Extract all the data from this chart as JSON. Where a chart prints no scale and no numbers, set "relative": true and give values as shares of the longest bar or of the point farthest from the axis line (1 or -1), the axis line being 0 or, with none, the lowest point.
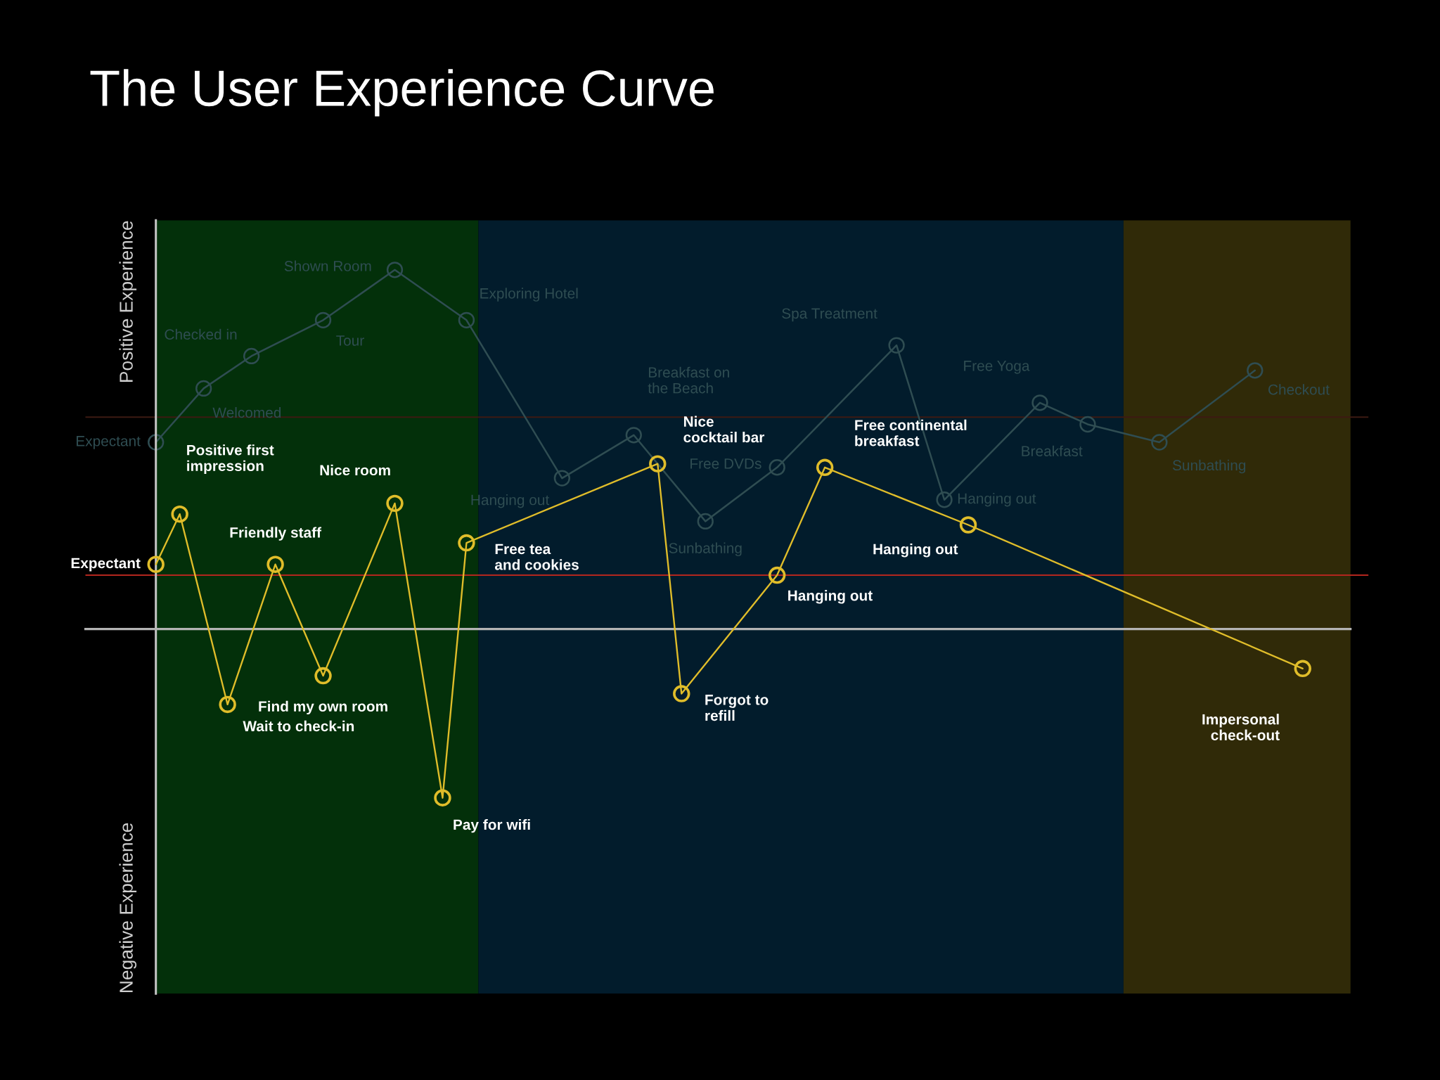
{
  "chart_data": {
    "type": "line",
    "title": "The User Experience Curve",
    "relative": true,
    "marker": "circle",
    "line_style": "solid",
    "categories": [
      null,
      null,
      null,
      null,
      null,
      null,
      null,
      null,
      null,
      null,
      null,
      null,
      null,
      null,
      null,
      null,
      null,
      null,
      null,
      null,
      null,
      null,
      null,
      null,
      null,
      null,
      null,
      null,
      null,
      null,
      null,
      null,
      null,
      null,
      null,
      null,
      null,
      null,
      null,
      null,
      null,
      null,
      null,
      null,
      null,
      null,
      null,
      null,
      null
    ],
    "series": [
      {
        "color": "#2f4d52",
        "values": [
          0.52,
          null,
          0.67,
          null,
          0.76,
          null,
          null,
          0.86,
          null,
          null,
          1.0,
          null,
          null,
          0.86,
          null,
          null,
          null,
          0.42,
          null,
          null,
          0.54,
          null,
          null,
          0.3,
          null,
          null,
          0.45,
          null,
          null,
          null,
          null,
          0.79,
          null,
          0.36,
          null,
          null,
          null,
          0.63,
          null,
          0.57,
          null,
          null,
          0.52,
          null,
          null,
          null,
          0.72,
          null,
          null
        ]
      },
      {
        "color": "#e0bd2a",
        "values": [
          0.18,
          0.32,
          null,
          -0.21,
          null,
          0.18,
          null,
          -0.13,
          null,
          null,
          0.35,
          null,
          -0.47,
          0.24,
          null,
          null,
          null,
          null,
          null,
          null,
          null,
          0.46,
          -0.18,
          null,
          null,
          null,
          0.15,
          null,
          0.45,
          null,
          null,
          null,
          null,
          null,
          0.29,
          null,
          null,
          null,
          null,
          null,
          null,
          null,
          null,
          null,
          null,
          null,
          null,
          null,
          -0.11
        ]
      }
    ],
    "ref_lines": [
      {
        "axis": "y",
        "value": 0.15,
        "color": "#b3261e"
      },
      {
        "axis": "y",
        "value": 0.59,
        "color": "#3d1a12"
      }
    ],
    "annotations": [
      "Positive Experience",
      "Negative Experience",
      "Expectant",
      "Welcomed",
      "Checked in",
      "Tour",
      "Shown Room",
      "Exploring Hotel",
      "Hanging out",
      "Breakfast on\nthe Beach",
      "Sunbathing",
      "Free DVDs",
      "Spa Treatment",
      "Hanging out",
      "Free Yoga",
      "Breakfast",
      "Sunbathing",
      "Checkout",
      "Expectant",
      "Positive first\nimpression",
      "Wait to check-in",
      "Friendly staff",
      "Find my own room",
      "Nice room",
      "Pay for wifi",
      "Free tea\nand cookies",
      "Nice\ncocktail bar",
      "Forgot to\nrefill",
      "Hanging out",
      "Free continental\nbreakfast",
      "Hanging out",
      "Impersonal\ncheck-out"
    ]
  }
}
